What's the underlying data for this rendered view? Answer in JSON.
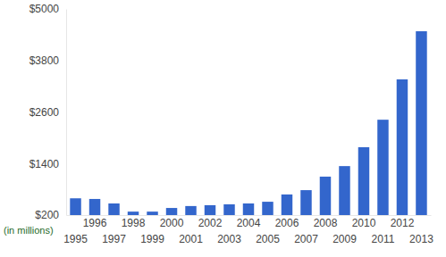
{
  "chart_data": {
    "type": "bar",
    "y_label": "(in millions)",
    "categories": [
      "1995",
      "1996",
      "1997",
      "1998",
      "1999",
      "2000",
      "2001",
      "2002",
      "2003",
      "2004",
      "2005",
      "2006",
      "2007",
      "2008",
      "2009",
      "2010",
      "2011",
      "2012",
      "2013"
    ],
    "values": [
      590,
      575,
      470,
      280,
      280,
      365,
      410,
      430,
      450,
      470,
      510,
      680,
      780,
      1095,
      1340,
      1780,
      2420,
      3360,
      4480
    ],
    "color": "#3366cc",
    "ylim": [
      200,
      5000
    ],
    "yticks": [
      {
        "value": 200,
        "label": "$200"
      },
      {
        "value": 1400,
        "label": "$1400"
      },
      {
        "value": 2600,
        "label": "$2600"
      },
      {
        "value": 3800,
        "label": "$3800"
      },
      {
        "value": 5000,
        "label": "$5000"
      }
    ],
    "grid": false
  }
}
